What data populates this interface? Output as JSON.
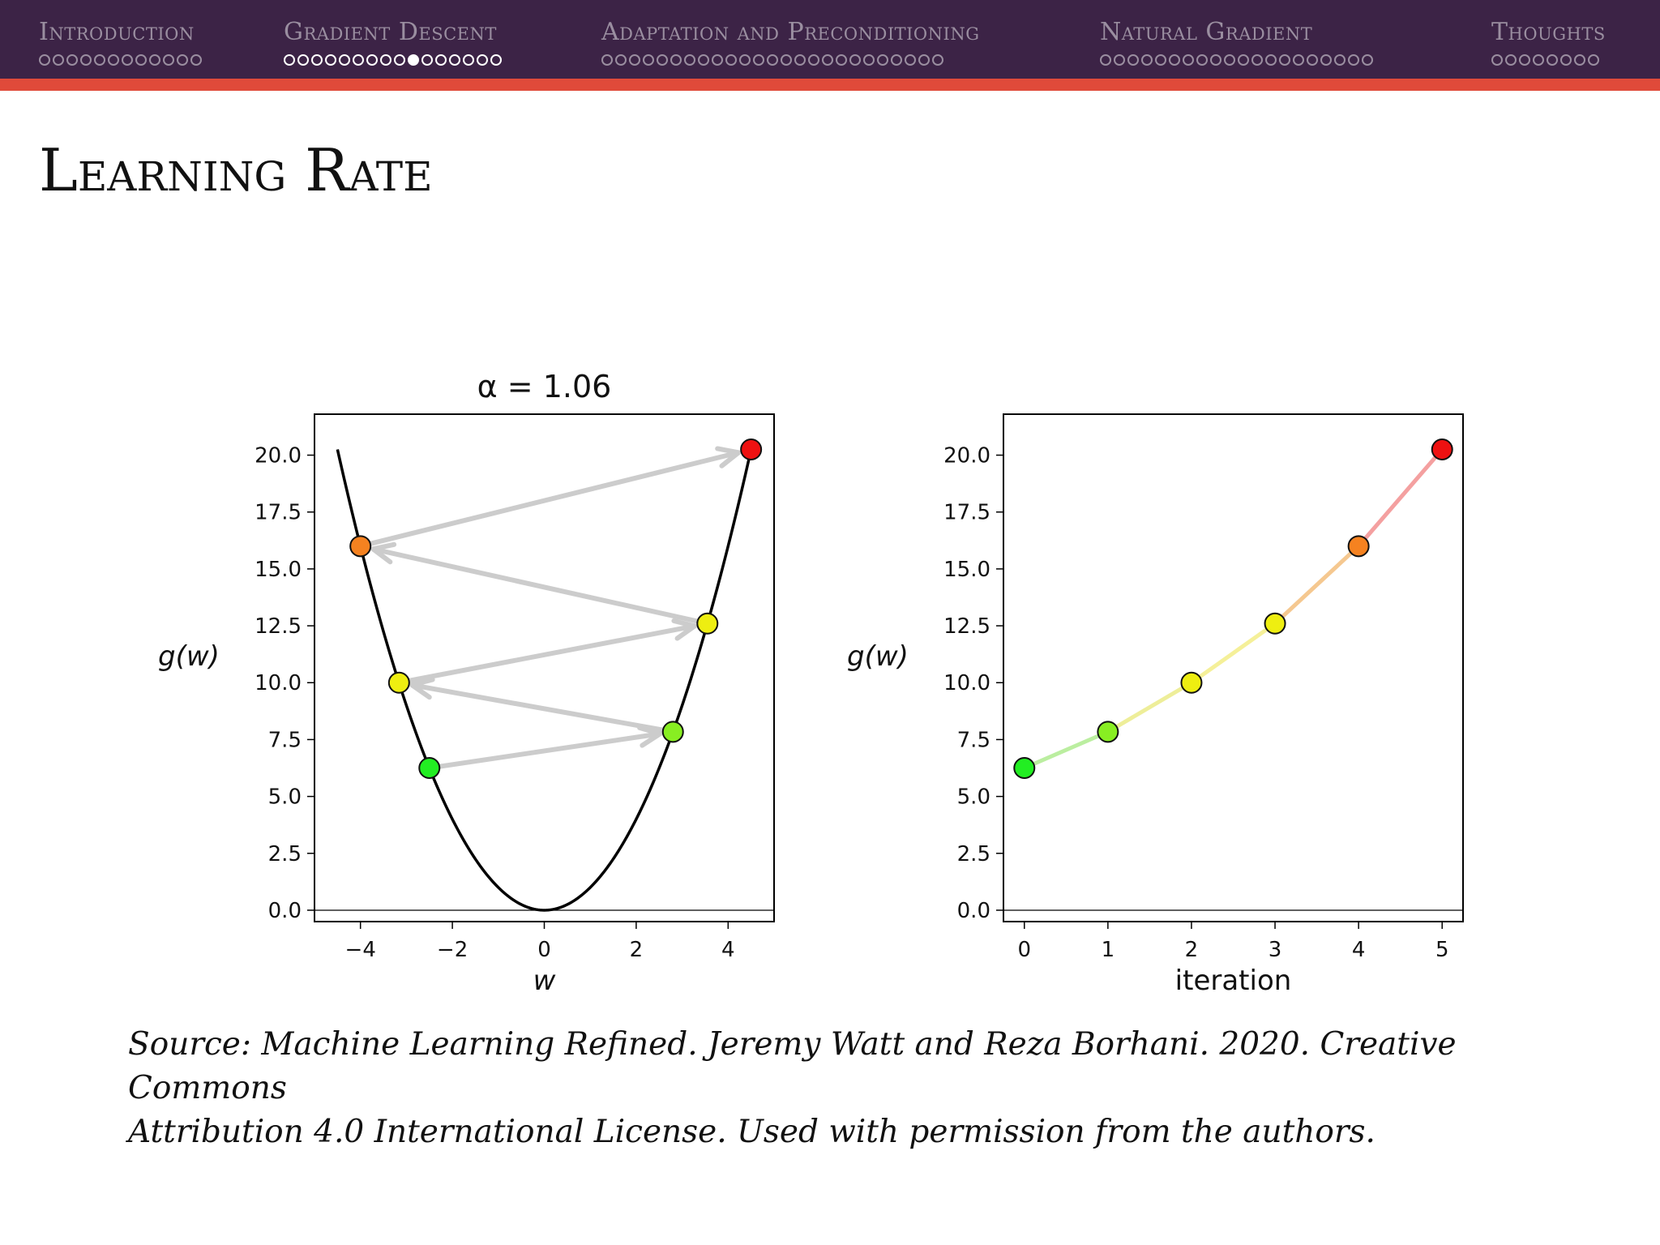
{
  "nav": {
    "sections": [
      {
        "title": "Introduction",
        "dots": 12,
        "active": false
      },
      {
        "title": "Gradient Descent",
        "dots": 16,
        "active": true,
        "current_dot": 9
      },
      {
        "title": "Adaptation and Preconditioning",
        "dots": 25,
        "active": false
      },
      {
        "title": "Natural Gradient",
        "dots": 20,
        "active": false
      },
      {
        "title": "Thoughts",
        "dots": 8,
        "active": false
      }
    ],
    "accent_color": "#e04a3a",
    "bar_color": "#3c2346"
  },
  "slide": {
    "title": "Learning Rate"
  },
  "chart_data": [
    {
      "type": "line",
      "title": "α = 1.06",
      "xlabel": "w",
      "ylabel": "g(w)",
      "xlim": [
        -5,
        5
      ],
      "ylim": [
        -0.5,
        21.8
      ],
      "xticks": [
        -4,
        -2,
        0,
        2,
        4
      ],
      "xtick_labels": [
        "−4",
        "−2",
        "0",
        "2",
        "4"
      ],
      "yticks": [
        0,
        2.5,
        5,
        7.5,
        10,
        12.5,
        15,
        17.5,
        20
      ],
      "ytick_labels": [
        "0.0",
        "2.5",
        "5.0",
        "7.5",
        "10.0",
        "12.5",
        "15.0",
        "17.5",
        "20.0"
      ],
      "curve": {
        "function": "w^2",
        "w_range": [
          -4.5,
          4.5
        ]
      },
      "points": [
        {
          "w": -2.5,
          "g": 6.25,
          "color": "#22ee22"
        },
        {
          "w": 2.8,
          "g": 7.84,
          "color": "#88ee22"
        },
        {
          "w": -3.16,
          "g": 10.0,
          "color": "#eeee11"
        },
        {
          "w": 3.55,
          "g": 12.6,
          "color": "#eeee11"
        },
        {
          "w": -4.0,
          "g": 16.0,
          "color": "#f58220"
        },
        {
          "w": 4.5,
          "g": 20.25,
          "color": "#ee1111"
        }
      ],
      "arrows": "consecutive",
      "arrow_color": "#cccccc"
    },
    {
      "type": "line",
      "title": "",
      "xlabel": "iteration",
      "ylabel": "g(w)",
      "xlim": [
        -0.25,
        5.25
      ],
      "ylim": [
        -0.5,
        21.8
      ],
      "xticks": [
        0,
        1,
        2,
        3,
        4,
        5
      ],
      "xtick_labels": [
        "0",
        "1",
        "2",
        "3",
        "4",
        "5"
      ],
      "yticks": [
        0,
        2.5,
        5,
        7.5,
        10,
        12.5,
        15,
        17.5,
        20
      ],
      "ytick_labels": [
        "0.0",
        "2.5",
        "5.0",
        "7.5",
        "10.0",
        "12.5",
        "15.0",
        "17.5",
        "20.0"
      ],
      "x": [
        0,
        1,
        2,
        3,
        4,
        5
      ],
      "y": [
        6.25,
        7.84,
        10.0,
        12.6,
        16.0,
        20.25
      ],
      "colors": [
        "#22ee22",
        "#88ee22",
        "#eeee11",
        "#eeee11",
        "#f58220",
        "#ee1111"
      ],
      "segment_colors": [
        "#bbeea0",
        "#eeee99",
        "#f5f099",
        "#f5c890",
        "#f4a0a0"
      ]
    }
  ],
  "caption": {
    "line1": "Source: Machine Learning Refined. Jeremy Watt and Reza Borhani. 2020. Creative Commons",
    "line2": "Attribution 4.0 International License. Used with permission from the authors."
  }
}
